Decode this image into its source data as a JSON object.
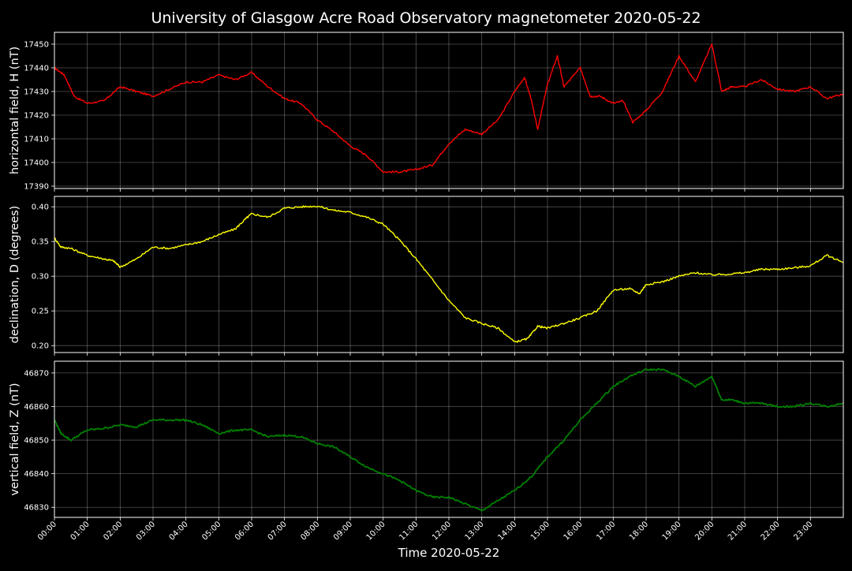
{
  "chart_data": {
    "type": "line",
    "title": "University of Glasgow Acre Road Observatory magnetometer 2020-05-22",
    "xlabel": "Time 2020-05-22",
    "x_ticks": [
      "00:00",
      "01:00",
      "02:00",
      "03:00",
      "04:00",
      "05:00",
      "06:00",
      "07:00",
      "08:00",
      "09:00",
      "10:00",
      "11:00",
      "12:00",
      "13:00",
      "14:00",
      "15:00",
      "16:00",
      "17:00",
      "18:00",
      "19:00",
      "20:00",
      "21:00",
      "22:00",
      "23:00"
    ],
    "xlim_hours": [
      0,
      24
    ],
    "grid": true,
    "panels": [
      {
        "id": "H",
        "ylabel": "horizontal field, H (nT)",
        "color": "#ff0000",
        "ylim": [
          17389,
          17455
        ],
        "yticks": [
          17390,
          17400,
          17410,
          17420,
          17430,
          17440,
          17450
        ],
        "tick_labels": [
          "17390",
          "17400",
          "17410",
          "17420",
          "17430",
          "17440",
          "17450"
        ],
        "x_hours": [
          0,
          0.3,
          0.6,
          1,
          1.5,
          2,
          2.5,
          3,
          3.5,
          4,
          4.5,
          5,
          5.5,
          6,
          6.5,
          7,
          7.5,
          8,
          8.5,
          9,
          9.5,
          10,
          10.5,
          11,
          11.5,
          12,
          12.5,
          13,
          13.5,
          14,
          14.3,
          14.5,
          14.7,
          15,
          15.3,
          15.5,
          16,
          16.3,
          16.6,
          17,
          17.3,
          17.6,
          18,
          18.5,
          19,
          19.5,
          20,
          20.3,
          20.6,
          21,
          21.5,
          22,
          22.5,
          23,
          23.5,
          24
        ],
        "values": [
          17440,
          17437,
          17428,
          17425,
          17426,
          17432,
          17430,
          17428,
          17431,
          17434,
          17434,
          17437,
          17435,
          17438,
          17432,
          17427,
          17425,
          17418,
          17413,
          17407,
          17403,
          17396,
          17396,
          17397,
          17399,
          17408,
          17414,
          17412,
          17418,
          17430,
          17436,
          17427,
          17414,
          17433,
          17445,
          17432,
          17440,
          17428,
          17428,
          17425,
          17426,
          17417,
          17422,
          17430,
          17445,
          17434,
          17450,
          17430,
          17432,
          17432,
          17435,
          17431,
          17430,
          17432,
          17427,
          17429
        ]
      },
      {
        "id": "D",
        "ylabel": "declination, D (degrees)",
        "color": "#ffff00",
        "ylim": [
          0.19,
          0.415
        ],
        "yticks": [
          0.2,
          0.25,
          0.3,
          0.35,
          0.4
        ],
        "tick_labels": [
          "0.20",
          "0.25",
          "0.30",
          "0.35",
          "0.40"
        ],
        "x_hours": [
          0,
          0.2,
          0.5,
          1,
          1.5,
          1.8,
          2,
          2.5,
          3,
          3.5,
          4,
          4.5,
          5,
          5.5,
          5.8,
          6,
          6.5,
          7,
          7.5,
          8,
          8.5,
          9,
          9.5,
          10,
          10.5,
          11,
          11.5,
          12,
          12.5,
          13,
          13.5,
          14,
          14.4,
          14.7,
          15,
          15.5,
          16,
          16.5,
          17,
          17.5,
          17.8,
          18,
          18.5,
          19,
          19.5,
          20,
          20.5,
          21,
          21.5,
          22,
          22.5,
          23,
          23.5,
          24
        ],
        "values": [
          0.355,
          0.342,
          0.34,
          0.33,
          0.325,
          0.322,
          0.313,
          0.325,
          0.342,
          0.34,
          0.345,
          0.35,
          0.36,
          0.368,
          0.382,
          0.39,
          0.385,
          0.398,
          0.4,
          0.401,
          0.395,
          0.392,
          0.385,
          0.375,
          0.352,
          0.325,
          0.295,
          0.265,
          0.24,
          0.232,
          0.225,
          0.205,
          0.21,
          0.228,
          0.225,
          0.232,
          0.24,
          0.25,
          0.28,
          0.282,
          0.275,
          0.288,
          0.292,
          0.3,
          0.305,
          0.302,
          0.303,
          0.305,
          0.31,
          0.31,
          0.312,
          0.315,
          0.33,
          0.32
        ]
      },
      {
        "id": "Z",
        "ylabel": "vertical field, Z (nT)",
        "color": "#008000",
        "ylim": [
          46827,
          46873.5
        ],
        "yticks": [
          46830,
          46840,
          46850,
          46860,
          46870
        ],
        "tick_labels": [
          "46830",
          "46840",
          "46850",
          "46860",
          "46870"
        ],
        "x_hours": [
          0,
          0.2,
          0.5,
          1,
          1.5,
          2,
          2.5,
          3,
          3.5,
          4,
          4.5,
          5,
          5.5,
          6,
          6.5,
          7,
          7.5,
          8,
          8.5,
          9,
          9.5,
          10,
          10.5,
          11,
          11.5,
          12,
          12.5,
          13,
          13.5,
          14,
          14.5,
          15,
          15.5,
          16,
          16.5,
          17,
          17.5,
          18,
          18.5,
          19,
          19.5,
          20,
          20.3,
          20.6,
          21,
          21.5,
          22,
          22.5,
          23,
          23.5,
          24
        ],
        "values": [
          46856,
          46852,
          46850,
          46853,
          46853.5,
          46854.5,
          46854,
          46856,
          46856,
          46856,
          46854.5,
          46852,
          46853,
          46853,
          46851,
          46851.5,
          46851,
          46849,
          46848,
          46845,
          46842,
          46840,
          46838,
          46835,
          46833,
          46833,
          46831,
          46829,
          46832,
          46835,
          46839,
          46845,
          46850,
          46856,
          46861,
          46866,
          46869,
          46871,
          46871,
          46869,
          46866,
          46869,
          46862,
          46862,
          46861,
          46861,
          46860,
          46860,
          46861,
          46860,
          46861
        ]
      }
    ]
  }
}
